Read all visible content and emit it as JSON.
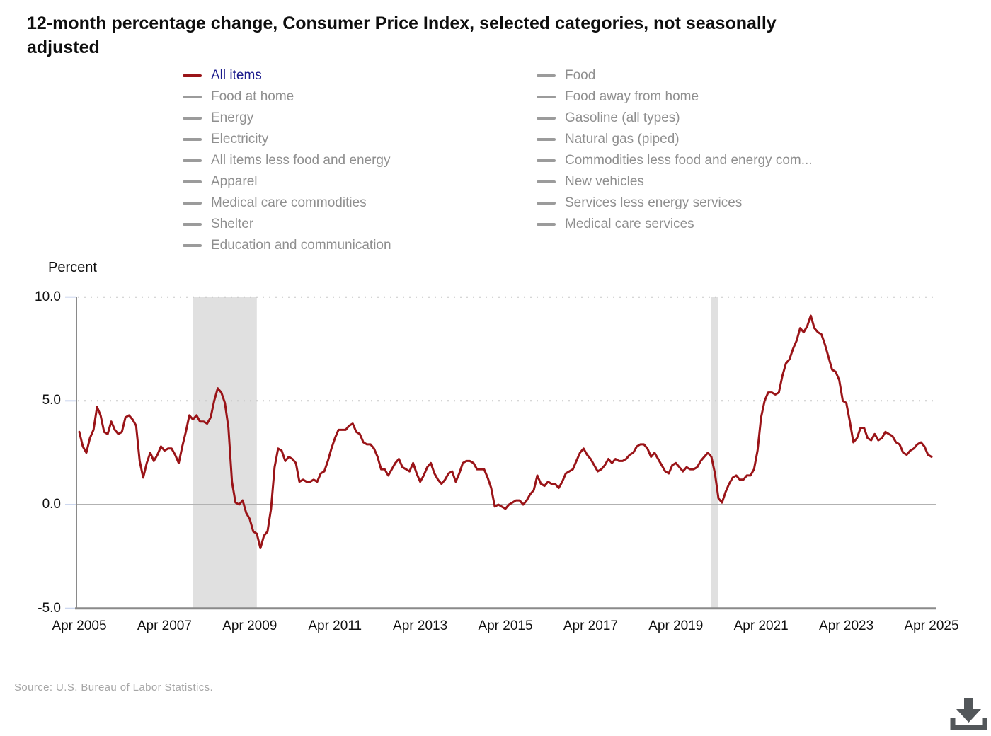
{
  "page": {
    "title_lines": [
      "12-month percentage change, Consumer Price Index, selected categories, not seasonally",
      "adjusted"
    ],
    "source": "Source: U.S. Bureau of Labor Statistics."
  },
  "colors": {
    "series": "#9a1418",
    "active_label": "#1a1a8c",
    "inactive_label": "#8f8f8f",
    "inactive_swatch": "#9b9b9b",
    "recession_band": "#e0e0e0",
    "dotted_grid": "#c9c9c9",
    "zero_line": "#b2b2b2",
    "axis": "#8a8a8a",
    "tick_mark": "#ccd7ef",
    "download_icon": "#53575a"
  },
  "legend": {
    "columns": [
      {
        "items": [
          {
            "label": "All items",
            "active": true
          },
          {
            "label": "Food at home",
            "active": false
          },
          {
            "label": "Energy",
            "active": false
          },
          {
            "label": "Electricity",
            "active": false
          },
          {
            "label": "All items less food and energy",
            "active": false
          },
          {
            "label": "Apparel",
            "active": false
          },
          {
            "label": "Medical care commodities",
            "active": false
          },
          {
            "label": "Shelter",
            "active": false
          },
          {
            "label": "Education and communication",
            "active": false
          }
        ]
      },
      {
        "items": [
          {
            "label": "Food",
            "active": false
          },
          {
            "label": "Food away from home",
            "active": false
          },
          {
            "label": "Gasoline (all types)",
            "active": false
          },
          {
            "label": "Natural gas (piped)",
            "active": false
          },
          {
            "label": "Commodities less food and energy com...",
            "active": false
          },
          {
            "label": "New vehicles",
            "active": false
          },
          {
            "label": "Services less energy services",
            "active": false
          },
          {
            "label": "Medical care services",
            "active": false
          }
        ]
      }
    ]
  },
  "chart_data": {
    "type": "line",
    "title": "12-month percentage change, Consumer Price Index, selected categories, not seasonally adjusted",
    "ylabel": "Percent",
    "ylim": [
      -5.0,
      10.0
    ],
    "y_ticks": [
      10.0,
      5.0,
      0.0,
      -5.0
    ],
    "y_tick_labels": [
      "10.0",
      "5.0",
      "0.0",
      "-5.0"
    ],
    "x_start": "Apr 2005",
    "x_end": "Apr 2025",
    "x_interval": "monthly",
    "x_tick_labels": [
      "Apr 2005",
      "Apr 2007",
      "Apr 2009",
      "Apr 2011",
      "Apr 2013",
      "Apr 2015",
      "Apr 2017",
      "Apr 2019",
      "Apr 2021",
      "Apr 2023",
      "Apr 2025"
    ],
    "x_tick_month_indices": [
      0,
      24,
      48,
      72,
      96,
      120,
      144,
      168,
      192,
      216,
      240
    ],
    "grid": "dotted horizontal at 5.0 and 10.0, solid at 0.0",
    "legend_position": "top, two columns",
    "recession_bands": [
      {
        "from_month_index": 32,
        "to_month_index": 50
      },
      {
        "from_month_index": 178,
        "to_month_index": 180
      }
    ],
    "series": [
      {
        "name": "All items",
        "values": [
          3.5,
          2.8,
          2.5,
          3.2,
          3.6,
          4.7,
          4.3,
          3.5,
          3.4,
          4.0,
          3.6,
          3.4,
          3.5,
          4.2,
          4.3,
          4.1,
          3.8,
          2.1,
          1.3,
          2.0,
          2.5,
          2.1,
          2.4,
          2.8,
          2.6,
          2.7,
          2.7,
          2.4,
          2.0,
          2.8,
          3.5,
          4.3,
          4.1,
          4.3,
          4.0,
          4.0,
          3.9,
          4.2,
          5.0,
          5.6,
          5.4,
          4.9,
          3.7,
          1.1,
          0.1,
          0.0,
          0.2,
          -0.4,
          -0.7,
          -1.3,
          -1.4,
          -2.1,
          -1.5,
          -1.3,
          -0.2,
          1.8,
          2.7,
          2.6,
          2.1,
          2.3,
          2.2,
          2.0,
          1.1,
          1.2,
          1.1,
          1.1,
          1.2,
          1.1,
          1.5,
          1.6,
          2.1,
          2.7,
          3.2,
          3.6,
          3.6,
          3.6,
          3.8,
          3.9,
          3.5,
          3.4,
          3.0,
          2.9,
          2.9,
          2.7,
          2.3,
          1.7,
          1.7,
          1.4,
          1.7,
          2.0,
          2.2,
          1.8,
          1.7,
          1.6,
          2.0,
          1.5,
          1.1,
          1.4,
          1.8,
          2.0,
          1.5,
          1.2,
          1.0,
          1.2,
          1.5,
          1.6,
          1.1,
          1.5,
          2.0,
          2.1,
          2.1,
          2.0,
          1.7,
          1.7,
          1.7,
          1.3,
          0.8,
          -0.1,
          0.0,
          -0.1,
          -0.2,
          0.0,
          0.1,
          0.2,
          0.2,
          0.0,
          0.2,
          0.5,
          0.7,
          1.4,
          1.0,
          0.9,
          1.1,
          1.0,
          1.0,
          0.8,
          1.1,
          1.5,
          1.6,
          1.7,
          2.1,
          2.5,
          2.7,
          2.4,
          2.2,
          1.9,
          1.6,
          1.7,
          1.9,
          2.2,
          2.0,
          2.2,
          2.1,
          2.1,
          2.2,
          2.4,
          2.5,
          2.8,
          2.9,
          2.9,
          2.7,
          2.3,
          2.5,
          2.2,
          1.9,
          1.6,
          1.5,
          1.9,
          2.0,
          1.8,
          1.6,
          1.8,
          1.7,
          1.7,
          1.8,
          2.1,
          2.3,
          2.5,
          2.3,
          1.5,
          0.3,
          0.1,
          0.6,
          1.0,
          1.3,
          1.4,
          1.2,
          1.2,
          1.4,
          1.4,
          1.7,
          2.6,
          4.2,
          5.0,
          5.4,
          5.4,
          5.3,
          5.4,
          6.2,
          6.8,
          7.0,
          7.5,
          7.9,
          8.5,
          8.3,
          8.6,
          9.1,
          8.5,
          8.3,
          8.2,
          7.7,
          7.1,
          6.5,
          6.4,
          6.0,
          5.0,
          4.9,
          4.0,
          3.0,
          3.2,
          3.7,
          3.7,
          3.2,
          3.1,
          3.4,
          3.1,
          3.2,
          3.5,
          3.4,
          3.3,
          3.0,
          2.9,
          2.5,
          2.4,
          2.6,
          2.7,
          2.9,
          3.0,
          2.8,
          2.4,
          2.3
        ]
      }
    ]
  }
}
